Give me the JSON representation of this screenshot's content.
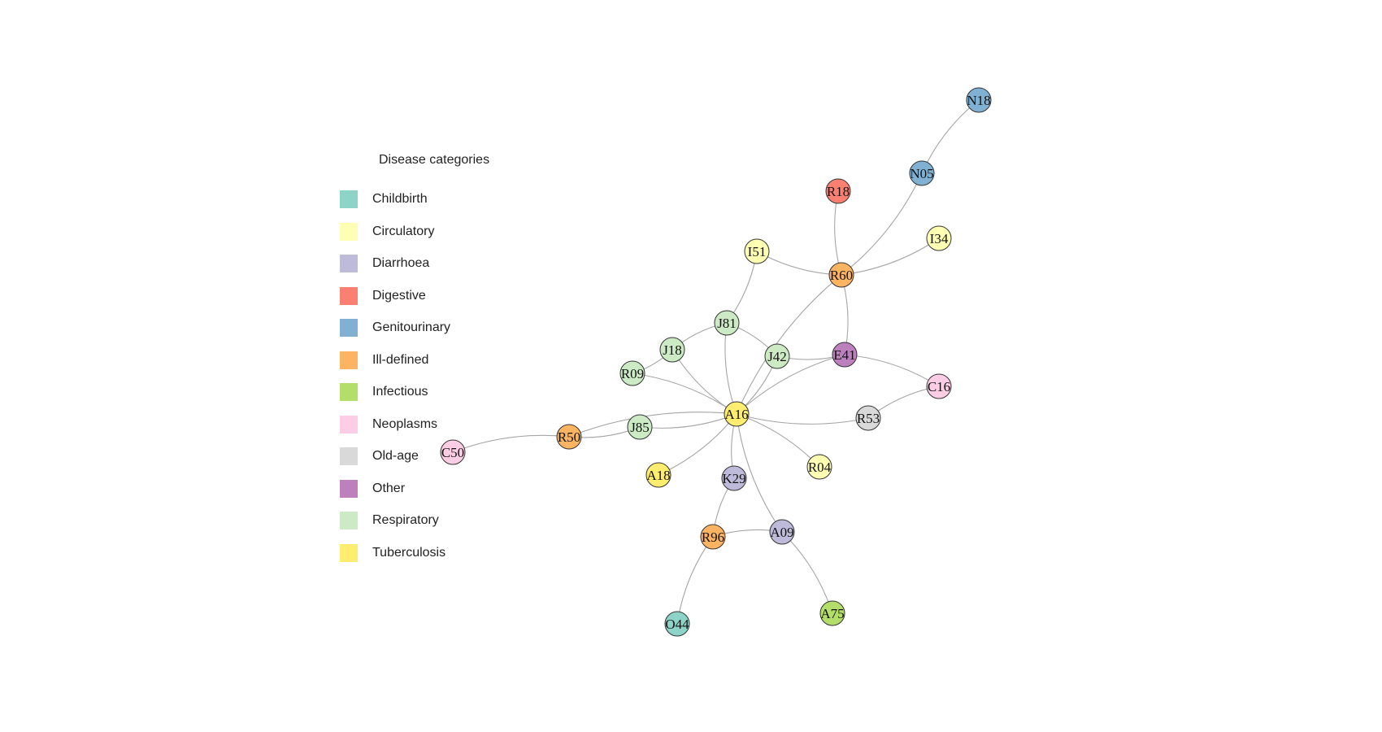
{
  "legend": {
    "title": "Disease categories",
    "items": [
      {
        "label": "Childbirth",
        "color": "#8dd3c7"
      },
      {
        "label": "Circulatory",
        "color": "#ffffb3"
      },
      {
        "label": "Diarrhoea",
        "color": "#bebada"
      },
      {
        "label": "Digestive",
        "color": "#fb8072"
      },
      {
        "label": "Genitourinary",
        "color": "#80b1d3"
      },
      {
        "label": "Ill-defined",
        "color": "#fdb462"
      },
      {
        "label": "Infectious",
        "color": "#b3de69"
      },
      {
        "label": "Neoplasms",
        "color": "#fccde5"
      },
      {
        "label": "Old-age",
        "color": "#d9d9d9"
      },
      {
        "label": "Other",
        "color": "#bc80bd"
      },
      {
        "label": "Respiratory",
        "color": "#ccebc5"
      },
      {
        "label": "Tuberculosis",
        "color": "#ffed6f"
      }
    ]
  },
  "nodes": [
    {
      "id": "N18",
      "category": "Genitourinary"
    },
    {
      "id": "N05",
      "category": "Genitourinary"
    },
    {
      "id": "R18",
      "category": "Digestive"
    },
    {
      "id": "I34",
      "category": "Circulatory"
    },
    {
      "id": "I51",
      "category": "Circulatory"
    },
    {
      "id": "R60",
      "category": "Ill-defined"
    },
    {
      "id": "J81",
      "category": "Respiratory"
    },
    {
      "id": "J18",
      "category": "Respiratory"
    },
    {
      "id": "J42",
      "category": "Respiratory"
    },
    {
      "id": "E41",
      "category": "Other"
    },
    {
      "id": "R09",
      "category": "Respiratory"
    },
    {
      "id": "C16",
      "category": "Neoplasms"
    },
    {
      "id": "A16",
      "category": "Tuberculosis"
    },
    {
      "id": "R53",
      "category": "Old-age"
    },
    {
      "id": "J85",
      "category": "Respiratory"
    },
    {
      "id": "R50",
      "category": "Ill-defined"
    },
    {
      "id": "C50",
      "category": "Neoplasms"
    },
    {
      "id": "A18",
      "category": "Tuberculosis"
    },
    {
      "id": "K29",
      "category": "Diarrhoea"
    },
    {
      "id": "R04",
      "category": "Circulatory"
    },
    {
      "id": "R96",
      "category": "Ill-defined"
    },
    {
      "id": "A09",
      "category": "Diarrhoea"
    },
    {
      "id": "O44",
      "category": "Childbirth"
    },
    {
      "id": "A75",
      "category": "Infectious"
    }
  ],
  "edges": [
    [
      "N18",
      "N05"
    ],
    [
      "N05",
      "R60"
    ],
    [
      "R18",
      "R60"
    ],
    [
      "I34",
      "R60"
    ],
    [
      "I51",
      "R60"
    ],
    [
      "I51",
      "J81"
    ],
    [
      "J81",
      "J18"
    ],
    [
      "J81",
      "J42"
    ],
    [
      "J81",
      "A16"
    ],
    [
      "J18",
      "R09"
    ],
    [
      "J18",
      "A16"
    ],
    [
      "R09",
      "A16"
    ],
    [
      "R60",
      "A16"
    ],
    [
      "R60",
      "E41"
    ],
    [
      "J42",
      "E41"
    ],
    [
      "J42",
      "A16"
    ],
    [
      "E41",
      "A16"
    ],
    [
      "E41",
      "C16"
    ],
    [
      "C16",
      "R53"
    ],
    [
      "R53",
      "A16"
    ],
    [
      "J85",
      "A16"
    ],
    [
      "R50",
      "A16"
    ],
    [
      "R50",
      "J85"
    ],
    [
      "C50",
      "R50"
    ],
    [
      "A18",
      "A16"
    ],
    [
      "K29",
      "A16"
    ],
    [
      "R04",
      "A16"
    ],
    [
      "A09",
      "A16"
    ],
    [
      "K29",
      "R96"
    ],
    [
      "R96",
      "A09"
    ],
    [
      "R96",
      "O44"
    ],
    [
      "A09",
      "A75"
    ]
  ]
}
